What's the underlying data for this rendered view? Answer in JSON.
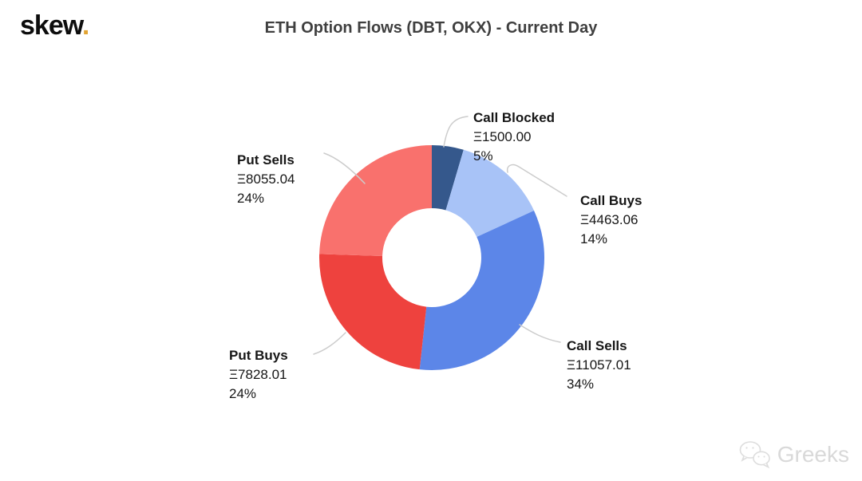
{
  "header": {
    "logo_text": "skew",
    "logo_dot": ".",
    "logo_dot_color": "#E2A433"
  },
  "watermark": {
    "text": "Greeks",
    "icon": "wechat-icon"
  },
  "chart_data": {
    "type": "pie",
    "subtype": "donut",
    "title": "ETH Option Flows (DBT, OKX) - Current Day",
    "currency_symbol": "Ξ",
    "legend_position": "callout-labels",
    "start_angle_deg": 0,
    "direction": "clockwise",
    "inner_radius_ratio": 0.44,
    "leader_line_color": "#CCCCCC",
    "slices": [
      {
        "label": "Call Blocked",
        "amount": 1500.0,
        "value": "Ξ1500.00",
        "pct": "5%",
        "color": "#35588C"
      },
      {
        "label": "Call Buys",
        "amount": 4463.06,
        "value": "Ξ4463.06",
        "pct": "14%",
        "color": "#A8C3F7"
      },
      {
        "label": "Call Sells",
        "amount": 11057.01,
        "value": "Ξ11057.01",
        "pct": "34%",
        "color": "#5C86E8"
      },
      {
        "label": "Put Buys",
        "amount": 7828.01,
        "value": "Ξ7828.01",
        "pct": "24%",
        "color": "#EE423E"
      },
      {
        "label": "Put Sells",
        "amount": 8055.04,
        "value": "Ξ8055.04",
        "pct": "24%",
        "color": "#F9716D"
      }
    ]
  }
}
